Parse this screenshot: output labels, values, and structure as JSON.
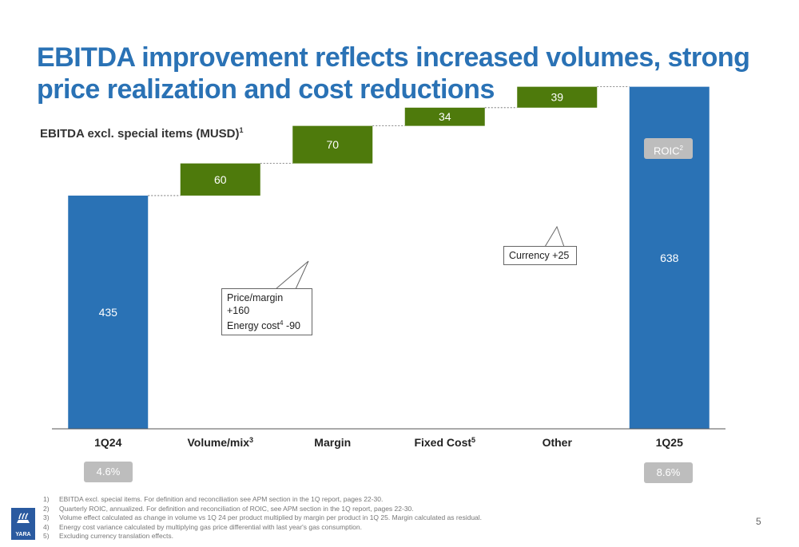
{
  "slide": {
    "title": "EBITDA improvement reflects increased volumes, strong price realization and cost reductions",
    "subtitle": "EBITDA excl. special items (MUSD)",
    "subtitle_sup": "1",
    "roic_label": "ROIC",
    "roic_sup": "2",
    "roic_start": "4.6%",
    "roic_end": "8.6%",
    "page_number": "5",
    "logo_text": "YARA"
  },
  "callouts": {
    "margin_line1": "Price/margin +160",
    "margin_line2_pre": "Energy cost",
    "margin_line2_sup": "4",
    "margin_line2_post": " -90",
    "other": "Currency +25"
  },
  "footnotes": [
    {
      "num": "1)",
      "text": "EBITDA excl. special items. For definition and reconciliation see APM section in the 1Q report, pages 22-30."
    },
    {
      "num": "2)",
      "text": "Quarterly ROIC, annualized. For definition and reconciliation of ROIC, see APM section in the 1Q report, pages 22-30."
    },
    {
      "num": "3)",
      "text": "Volume effect calculated as change in volume vs 1Q 24 per product multiplied by margin per product in 1Q 25. Margin calculated as residual."
    },
    {
      "num": "4)",
      "text": "Energy cost variance calculated by multiplying gas price differential with last year's gas consumption."
    },
    {
      "num": "5)",
      "text": "Excluding currency translation effects."
    }
  ],
  "colors": {
    "total": "#2a72b5",
    "increase": "#4e7a0c",
    "title": "#2a72b5",
    "pill": "#bdbdbd"
  },
  "chart_data": {
    "type": "bar",
    "subtype": "waterfall",
    "categories": [
      "1Q24",
      "Volume/mix",
      "Margin",
      "Fixed Cost",
      "Other",
      "1Q25"
    ],
    "category_sups": [
      "",
      "3",
      "",
      "5",
      "",
      ""
    ],
    "values": [
      435,
      60,
      70,
      34,
      39,
      638
    ],
    "kinds": [
      "total",
      "delta",
      "delta",
      "delta",
      "delta",
      "total"
    ],
    "labels": [
      "435",
      "60",
      "70",
      "34",
      "39",
      "638"
    ],
    "ylim": [
      0,
      700
    ],
    "grid": false,
    "connectors": true
  }
}
